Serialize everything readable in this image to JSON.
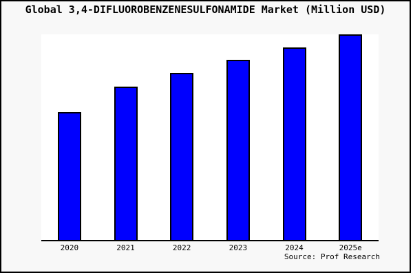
{
  "chart_data": {
    "type": "bar",
    "title": "Global 3,4-DIFLUOROBENZENESULFONAMIDE Market (Million USD)",
    "categories": [
      "2020",
      "2021",
      "2022",
      "2023",
      "2024",
      "2025e"
    ],
    "values": [
      62.5,
      74.9,
      81.3,
      87.6,
      93.6,
      100
    ],
    "values_note": "y-axis is unlabeled; values estimated as bar height in percent of the tallest (2025e) bar",
    "xlabel": "",
    "ylabel": "",
    "ylim": [
      0,
      100
    ],
    "grid": false,
    "legend": "none",
    "source": "Source: Prof Research",
    "bar_color": "#0000fe",
    "bar_border_color": "#000000"
  },
  "colors": {
    "canvas_background": "#f8f8f8",
    "plot_background": "#ffffff",
    "frame_border": "#000000",
    "text": "#000000"
  }
}
